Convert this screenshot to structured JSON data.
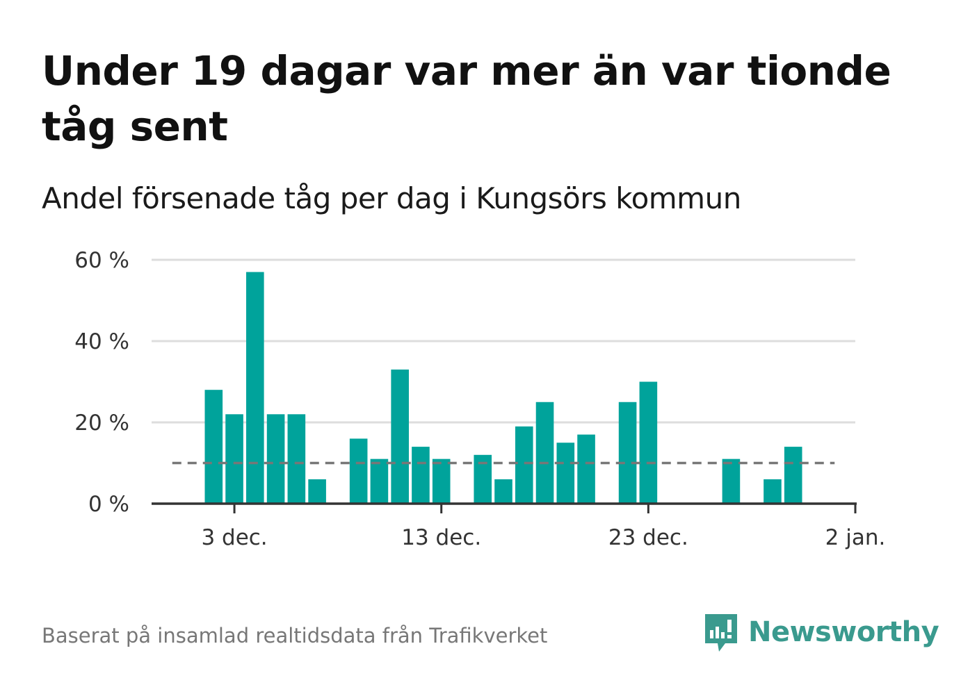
{
  "title": "Under 19 dagar var mer än var tionde tåg sent",
  "subtitle": "Andel försenade tåg per dag i Kungsörs kommun",
  "footer": "Baserat på insamlad realtidsdata från Trafikverket",
  "brand": {
    "name": "Newsworthy",
    "icon": "newsworthy-logo-icon",
    "color": "#3a9a8e"
  },
  "colors": {
    "bar": "#00a39b",
    "grid": "#dddddd",
    "axis": "#333333",
    "reference_line": "#777777"
  },
  "chart_data": {
    "type": "bar",
    "x_axis_type": "date",
    "ylim": [
      0,
      60
    ],
    "xlim": [
      "2023-11-29",
      "2024-01-02"
    ],
    "y_ticks": [
      {
        "value": 0,
        "label": "0 %"
      },
      {
        "value": 20,
        "label": "20 %"
      },
      {
        "value": 40,
        "label": "40 %"
      },
      {
        "value": 60,
        "label": "60 %"
      }
    ],
    "x_ticks": [
      {
        "date": "2023-12-03",
        "label": "3 dec."
      },
      {
        "date": "2023-12-13",
        "label": "13 dec."
      },
      {
        "date": "2023-12-23",
        "label": "23 dec."
      },
      {
        "date": "2024-01-02",
        "label": "2 jan."
      }
    ],
    "grid": true,
    "legend": "none",
    "reference_line": {
      "value": 10,
      "style": "dashed",
      "x_start": "2023-11-30",
      "x_end": "2024-01-01"
    },
    "series": [
      {
        "data": [
          {
            "x": "2023-12-02",
            "y": 28
          },
          {
            "x": "2023-12-03",
            "y": 22
          },
          {
            "x": "2023-12-04",
            "y": 57
          },
          {
            "x": "2023-12-05",
            "y": 22
          },
          {
            "x": "2023-12-06",
            "y": 22
          },
          {
            "x": "2023-12-07",
            "y": 6
          },
          {
            "x": "2023-12-09",
            "y": 16
          },
          {
            "x": "2023-12-10",
            "y": 11
          },
          {
            "x": "2023-12-11",
            "y": 33
          },
          {
            "x": "2023-12-12",
            "y": 14
          },
          {
            "x": "2023-12-13",
            "y": 11
          },
          {
            "x": "2023-12-15",
            "y": 12
          },
          {
            "x": "2023-12-16",
            "y": 6
          },
          {
            "x": "2023-12-17",
            "y": 19
          },
          {
            "x": "2023-12-18",
            "y": 25
          },
          {
            "x": "2023-12-19",
            "y": 15
          },
          {
            "x": "2023-12-20",
            "y": 17
          },
          {
            "x": "2023-12-22",
            "y": 25
          },
          {
            "x": "2023-12-23",
            "y": 30
          },
          {
            "x": "2023-12-27",
            "y": 11
          },
          {
            "x": "2023-12-29",
            "y": 6
          },
          {
            "x": "2023-12-30",
            "y": 14
          }
        ]
      }
    ]
  }
}
